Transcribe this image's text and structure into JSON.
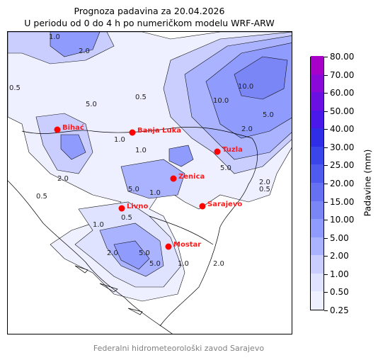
{
  "title_line1": "Prognoza padavina za 20.04.2026",
  "title_line2": "U periodu od 0 do 4 h po numeričkom modelu WRF-ARW",
  "colorbar": {
    "label": "Padavine (mm)",
    "levels": [
      "0.25",
      "0.50",
      "1.00",
      "2.00",
      "5.00",
      "10.00",
      "15.00",
      "20.00",
      "25.00",
      "30.00",
      "40.00",
      "50.00",
      "60.00",
      "70.00",
      "80.00"
    ],
    "colors": [
      "#eef0ff",
      "#dfe3ff",
      "#c9ceff",
      "#aab3ff",
      "#8f9bfd",
      "#7a86f6",
      "#6571f2",
      "#4f5bee",
      "#3a46ea",
      "#2f2ee6",
      "#4a18e8",
      "#6a10e2",
      "#8a08d8",
      "#a800c8"
    ]
  },
  "cities": [
    {
      "name": "Bihać"
    },
    {
      "name": "Banja Luka"
    },
    {
      "name": "Tuzla"
    },
    {
      "name": "Zenica"
    },
    {
      "name": "Sarajevo"
    },
    {
      "name": "Livno"
    },
    {
      "name": "Mostar"
    }
  ],
  "contour_labels": [
    "1.0",
    "2.0",
    "0.5",
    "5.0",
    "10.0",
    "5.0",
    "2.0",
    "0.5",
    "1.0",
    "5.0",
    "1.0",
    "2.0",
    "1.0",
    "0.5",
    "5.0",
    "2.0",
    "1.0",
    "5.0",
    "2.0",
    "0.5",
    "1.0",
    "5.0",
    "10.0",
    "2.0",
    "0.5"
  ],
  "footer": "Federalni hidrometeorološki zavod Sarajevo"
}
